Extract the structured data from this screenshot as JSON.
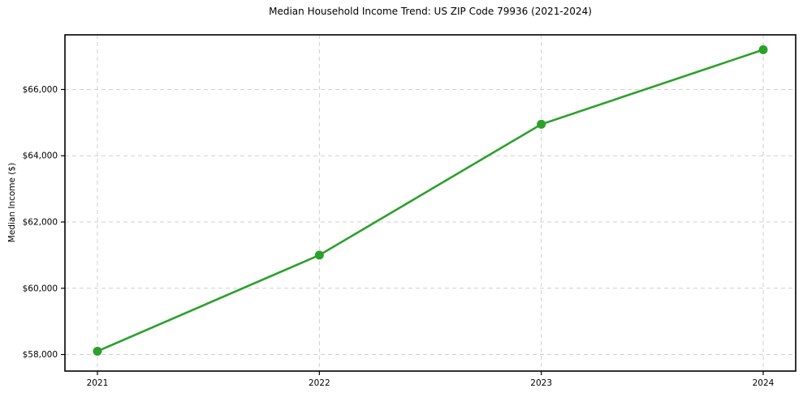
{
  "chart_data": {
    "type": "line",
    "title": "Median Household Income Trend: US ZIP Code 79936 (2021-2024)",
    "xlabel": "",
    "ylabel": "Median Income ($)",
    "categories": [
      "2021",
      "2022",
      "2023",
      "2024"
    ],
    "series": [
      {
        "name": "Median Household Income",
        "values": [
          58100,
          61000,
          64950,
          67200
        ]
      }
    ],
    "y_ticks": [
      58000,
      60000,
      62000,
      64000,
      66000
    ],
    "y_tick_labels": [
      "$58,000",
      "$60,000",
      "$62,000",
      "$64,000",
      "$66,000"
    ],
    "ylim": [
      57500,
      67650
    ],
    "grid": "both, dashed",
    "legend_position": "none",
    "line_color": "#2ca02c",
    "marker": "circle",
    "marker_color": "#2ca02c",
    "grid_color": "#cfcfcf",
    "frame_color": "#000000",
    "background_color": "#ffffff"
  }
}
